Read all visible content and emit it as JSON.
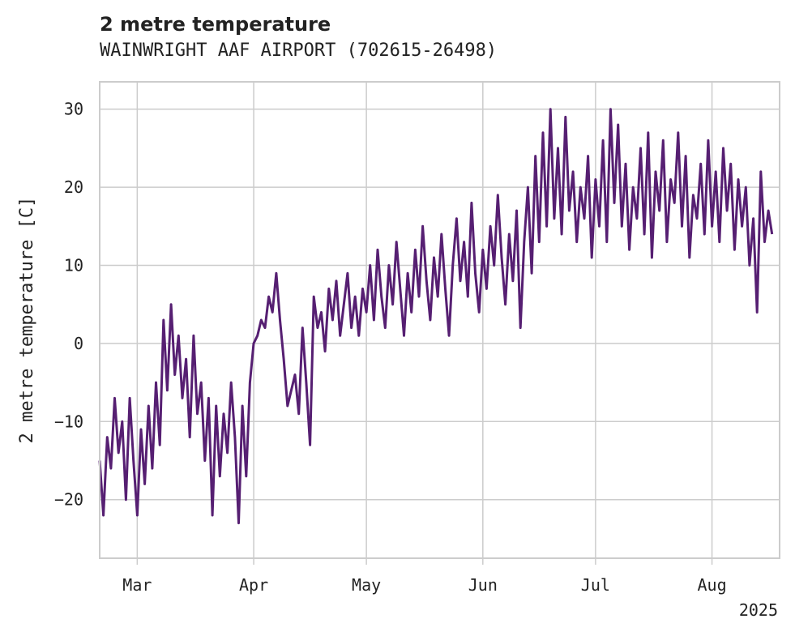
{
  "chart_data": {
    "type": "line",
    "title": "2 metre temperature",
    "subtitle": "WAINWRIGHT AAF AIRPORT (702615-26498)",
    "xlabel": "",
    "ylabel": "2 metre temperature [C]",
    "year_label": "2025",
    "xlim": [
      "2025-02-19",
      "2025-08-19"
    ],
    "ylim": [
      -27.5,
      33.5
    ],
    "y_ticks": [
      30,
      20,
      10,
      0,
      -10,
      -20
    ],
    "y_tick_labels": [
      "30",
      "20",
      "10",
      "0",
      "−10",
      "−20"
    ],
    "x_ticks": [
      {
        "date": "2025-03-01",
        "label": "Mar"
      },
      {
        "date": "2025-04-01",
        "label": "Apr"
      },
      {
        "date": "2025-05-01",
        "label": "May"
      },
      {
        "date": "2025-06-01",
        "label": "Jun"
      },
      {
        "date": "2025-07-01",
        "label": "Jul"
      },
      {
        "date": "2025-08-01",
        "label": "Aug"
      }
    ],
    "grid": true,
    "series": [
      {
        "color": "#561f72",
        "points": [
          [
            "2025-02-19",
            -15
          ],
          [
            "2025-02-20",
            -22
          ],
          [
            "2025-02-21",
            -12
          ],
          [
            "2025-02-22",
            -16
          ],
          [
            "2025-02-23",
            -7
          ],
          [
            "2025-02-24",
            -14
          ],
          [
            "2025-02-25",
            -10
          ],
          [
            "2025-02-26",
            -20
          ],
          [
            "2025-02-27",
            -7
          ],
          [
            "2025-02-28",
            -15
          ],
          [
            "2025-03-01",
            -22
          ],
          [
            "2025-03-02",
            -11
          ],
          [
            "2025-03-03",
            -18
          ],
          [
            "2025-03-04",
            -8
          ],
          [
            "2025-03-05",
            -16
          ],
          [
            "2025-03-06",
            -5
          ],
          [
            "2025-03-07",
            -13
          ],
          [
            "2025-03-08",
            3
          ],
          [
            "2025-03-09",
            -6
          ],
          [
            "2025-03-10",
            5
          ],
          [
            "2025-03-11",
            -4
          ],
          [
            "2025-03-12",
            1
          ],
          [
            "2025-03-13",
            -7
          ],
          [
            "2025-03-14",
            -2
          ],
          [
            "2025-03-15",
            -12
          ],
          [
            "2025-03-16",
            1
          ],
          [
            "2025-03-17",
            -9
          ],
          [
            "2025-03-18",
            -5
          ],
          [
            "2025-03-19",
            -15
          ],
          [
            "2025-03-20",
            -7
          ],
          [
            "2025-03-21",
            -22
          ],
          [
            "2025-03-22",
            -8
          ],
          [
            "2025-03-23",
            -17
          ],
          [
            "2025-03-24",
            -9
          ],
          [
            "2025-03-25",
            -14
          ],
          [
            "2025-03-26",
            -5
          ],
          [
            "2025-03-27",
            -12
          ],
          [
            "2025-03-28",
            -23
          ],
          [
            "2025-03-29",
            -8
          ],
          [
            "2025-03-30",
            -17
          ],
          [
            "2025-03-31",
            -5
          ],
          [
            "2025-04-01",
            0
          ],
          [
            "2025-04-02",
            1
          ],
          [
            "2025-04-03",
            3
          ],
          [
            "2025-04-04",
            2
          ],
          [
            "2025-04-05",
            6
          ],
          [
            "2025-04-06",
            4
          ],
          [
            "2025-04-07",
            9
          ],
          [
            "2025-04-08",
            3
          ],
          [
            "2025-04-09",
            -2
          ],
          [
            "2025-04-10",
            -8
          ],
          [
            "2025-04-11",
            -6
          ],
          [
            "2025-04-12",
            -4
          ],
          [
            "2025-04-13",
            -9
          ],
          [
            "2025-04-14",
            2
          ],
          [
            "2025-04-15",
            -5
          ],
          [
            "2025-04-16",
            -13
          ],
          [
            "2025-04-17",
            6
          ],
          [
            "2025-04-18",
            2
          ],
          [
            "2025-04-19",
            4
          ],
          [
            "2025-04-20",
            -1
          ],
          [
            "2025-04-21",
            7
          ],
          [
            "2025-04-22",
            3
          ],
          [
            "2025-04-23",
            8
          ],
          [
            "2025-04-24",
            1
          ],
          [
            "2025-04-25",
            5
          ],
          [
            "2025-04-26",
            9
          ],
          [
            "2025-04-27",
            2
          ],
          [
            "2025-04-28",
            6
          ],
          [
            "2025-04-29",
            1
          ],
          [
            "2025-04-30",
            7
          ],
          [
            "2025-05-01",
            4
          ],
          [
            "2025-05-02",
            10
          ],
          [
            "2025-05-03",
            3
          ],
          [
            "2025-05-04",
            12
          ],
          [
            "2025-05-05",
            6
          ],
          [
            "2025-05-06",
            2
          ],
          [
            "2025-05-07",
            10
          ],
          [
            "2025-05-08",
            5
          ],
          [
            "2025-05-09",
            13
          ],
          [
            "2025-05-10",
            7
          ],
          [
            "2025-05-11",
            1
          ],
          [
            "2025-05-12",
            9
          ],
          [
            "2025-05-13",
            4
          ],
          [
            "2025-05-14",
            12
          ],
          [
            "2025-05-15",
            6
          ],
          [
            "2025-05-16",
            15
          ],
          [
            "2025-05-17",
            8
          ],
          [
            "2025-05-18",
            3
          ],
          [
            "2025-05-19",
            11
          ],
          [
            "2025-05-20",
            6
          ],
          [
            "2025-05-21",
            14
          ],
          [
            "2025-05-22",
            7
          ],
          [
            "2025-05-23",
            1
          ],
          [
            "2025-05-24",
            10
          ],
          [
            "2025-05-25",
            16
          ],
          [
            "2025-05-26",
            8
          ],
          [
            "2025-05-27",
            13
          ],
          [
            "2025-05-28",
            6
          ],
          [
            "2025-05-29",
            18
          ],
          [
            "2025-05-30",
            9
          ],
          [
            "2025-05-31",
            4
          ],
          [
            "2025-06-01",
            12
          ],
          [
            "2025-06-02",
            7
          ],
          [
            "2025-06-03",
            15
          ],
          [
            "2025-06-04",
            10
          ],
          [
            "2025-06-05",
            19
          ],
          [
            "2025-06-06",
            11
          ],
          [
            "2025-06-07",
            5
          ],
          [
            "2025-06-08",
            14
          ],
          [
            "2025-06-09",
            8
          ],
          [
            "2025-06-10",
            17
          ],
          [
            "2025-06-11",
            2
          ],
          [
            "2025-06-12",
            13
          ],
          [
            "2025-06-13",
            20
          ],
          [
            "2025-06-14",
            9
          ],
          [
            "2025-06-15",
            24
          ],
          [
            "2025-06-16",
            13
          ],
          [
            "2025-06-17",
            27
          ],
          [
            "2025-06-18",
            15
          ],
          [
            "2025-06-19",
            30
          ],
          [
            "2025-06-20",
            16
          ],
          [
            "2025-06-21",
            25
          ],
          [
            "2025-06-22",
            14
          ],
          [
            "2025-06-23",
            29
          ],
          [
            "2025-06-24",
            17
          ],
          [
            "2025-06-25",
            22
          ],
          [
            "2025-06-26",
            13
          ],
          [
            "2025-06-27",
            20
          ],
          [
            "2025-06-28",
            16
          ],
          [
            "2025-06-29",
            24
          ],
          [
            "2025-06-30",
            11
          ],
          [
            "2025-07-01",
            21
          ],
          [
            "2025-07-02",
            15
          ],
          [
            "2025-07-03",
            26
          ],
          [
            "2025-07-04",
            13
          ],
          [
            "2025-07-05",
            30
          ],
          [
            "2025-07-06",
            18
          ],
          [
            "2025-07-07",
            28
          ],
          [
            "2025-07-08",
            15
          ],
          [
            "2025-07-09",
            23
          ],
          [
            "2025-07-10",
            12
          ],
          [
            "2025-07-11",
            20
          ],
          [
            "2025-07-12",
            16
          ],
          [
            "2025-07-13",
            25
          ],
          [
            "2025-07-14",
            14
          ],
          [
            "2025-07-15",
            27
          ],
          [
            "2025-07-16",
            11
          ],
          [
            "2025-07-17",
            22
          ],
          [
            "2025-07-18",
            17
          ],
          [
            "2025-07-19",
            26
          ],
          [
            "2025-07-20",
            13
          ],
          [
            "2025-07-21",
            21
          ],
          [
            "2025-07-22",
            18
          ],
          [
            "2025-07-23",
            27
          ],
          [
            "2025-07-24",
            15
          ],
          [
            "2025-07-25",
            24
          ],
          [
            "2025-07-26",
            11
          ],
          [
            "2025-07-27",
            19
          ],
          [
            "2025-07-28",
            16
          ],
          [
            "2025-07-29",
            23
          ],
          [
            "2025-07-30",
            14
          ],
          [
            "2025-07-31",
            26
          ],
          [
            "2025-08-01",
            15
          ],
          [
            "2025-08-02",
            22
          ],
          [
            "2025-08-03",
            13
          ],
          [
            "2025-08-04",
            25
          ],
          [
            "2025-08-05",
            17
          ],
          [
            "2025-08-06",
            23
          ],
          [
            "2025-08-07",
            12
          ],
          [
            "2025-08-08",
            21
          ],
          [
            "2025-08-09",
            15
          ],
          [
            "2025-08-10",
            20
          ],
          [
            "2025-08-11",
            10
          ],
          [
            "2025-08-12",
            16
          ],
          [
            "2025-08-13",
            4
          ],
          [
            "2025-08-14",
            22
          ],
          [
            "2025-08-15",
            13
          ],
          [
            "2025-08-16",
            17
          ],
          [
            "2025-08-17",
            14
          ]
        ]
      }
    ]
  }
}
